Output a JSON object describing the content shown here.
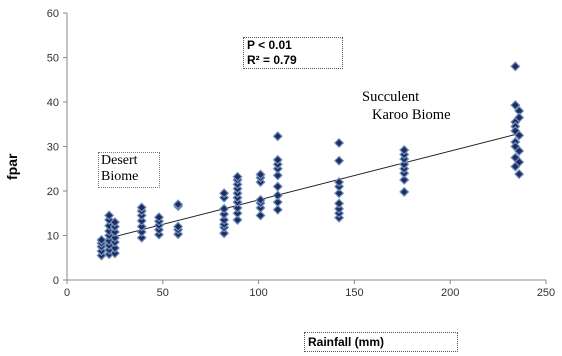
{
  "chart_data": {
    "type": "scatter",
    "xlabel": "Rainfall  (mm)",
    "ylabel": "fpar",
    "xlim": [
      0,
      250
    ],
    "ylim": [
      0,
      60
    ],
    "xticks": [
      0,
      50,
      100,
      150,
      200,
      250
    ],
    "yticks": [
      0,
      10,
      20,
      30,
      40,
      50,
      60
    ],
    "grid": false,
    "marker_color": "#1f2d5c",
    "marker_edge_color": "#6f8fbf",
    "stats": {
      "p": "P < 0.01",
      "r2": "R² = 0.79"
    },
    "annotations": {
      "desert": [
        "Desert",
        "Biome"
      ],
      "karoo": [
        "Succulent",
        "Karoo Biome"
      ]
    },
    "trendline": {
      "x": [
        20,
        235
      ],
      "y": [
        9.2,
        32.8
      ]
    },
    "series": [
      {
        "points": [
          [
            18,
            5.5
          ],
          [
            18,
            6.5
          ],
          [
            18,
            7.5
          ],
          [
            18,
            8.3
          ],
          [
            18,
            9.0
          ],
          [
            22,
            5.8
          ],
          [
            22,
            6.8
          ],
          [
            22,
            7.8
          ],
          [
            22,
            8.8
          ],
          [
            22,
            10.0
          ],
          [
            22,
            11.0
          ],
          [
            22,
            12.2
          ],
          [
            22,
            13.5
          ],
          [
            22,
            14.5
          ],
          [
            25,
            6.0
          ],
          [
            25,
            7.2
          ],
          [
            25,
            8.5
          ],
          [
            25,
            9.5
          ],
          [
            25,
            10.8
          ],
          [
            25,
            12.0
          ],
          [
            25,
            13.0
          ],
          [
            39,
            9.5
          ],
          [
            39,
            10.8
          ],
          [
            39,
            12.0
          ],
          [
            39,
            13.3
          ],
          [
            39,
            14.5
          ],
          [
            39,
            15.5
          ],
          [
            39,
            16.3
          ],
          [
            48,
            10.2
          ],
          [
            48,
            11.3
          ],
          [
            48,
            12.3
          ],
          [
            48,
            13.2
          ],
          [
            48,
            14.1
          ],
          [
            58,
            10.3
          ],
          [
            58,
            11.3
          ],
          [
            58,
            12.0
          ],
          [
            58,
            16.6
          ],
          [
            58,
            17.0
          ],
          [
            82,
            10.5
          ],
          [
            82,
            11.8
          ],
          [
            82,
            12.5
          ],
          [
            82,
            13.5
          ],
          [
            82,
            14.8
          ],
          [
            82,
            16.0
          ],
          [
            82,
            18.5
          ],
          [
            82,
            19.5
          ],
          [
            89,
            13.5
          ],
          [
            89,
            15.0
          ],
          [
            89,
            16.2
          ],
          [
            89,
            17.5
          ],
          [
            89,
            18.5
          ],
          [
            89,
            19.5
          ],
          [
            89,
            20.5
          ],
          [
            89,
            21.5
          ],
          [
            89,
            22.5
          ],
          [
            89,
            23.2
          ],
          [
            101,
            14.5
          ],
          [
            101,
            16.2
          ],
          [
            101,
            17.3
          ],
          [
            101,
            18.0
          ],
          [
            101,
            22.0
          ],
          [
            101,
            23.0
          ],
          [
            101,
            23.7
          ],
          [
            110,
            15.8
          ],
          [
            110,
            17.5
          ],
          [
            110,
            19.0
          ],
          [
            110,
            21.0
          ],
          [
            110,
            23.5
          ],
          [
            110,
            25.0
          ],
          [
            110,
            26.0
          ],
          [
            110,
            27.0
          ],
          [
            110,
            32.3
          ],
          [
            142,
            14.0
          ],
          [
            142,
            15.0
          ],
          [
            142,
            16.0
          ],
          [
            142,
            17.2
          ],
          [
            142,
            19.5
          ],
          [
            142,
            21.0
          ],
          [
            142,
            22.0
          ],
          [
            142,
            26.8
          ],
          [
            142,
            30.8
          ],
          [
            176,
            19.8
          ],
          [
            176,
            22.5
          ],
          [
            176,
            24.0
          ],
          [
            176,
            25.0
          ],
          [
            176,
            26.0
          ],
          [
            176,
            27.2
          ],
          [
            176,
            28.2
          ],
          [
            176,
            29.2
          ],
          [
            234,
            48.0
          ],
          [
            234,
            39.3
          ],
          [
            234,
            35.5
          ],
          [
            234,
            34.5
          ],
          [
            234,
            33.5
          ],
          [
            234,
            31.0
          ],
          [
            234,
            30.0
          ],
          [
            234,
            27.5
          ],
          [
            234,
            25.5
          ],
          [
            236,
            38.0
          ],
          [
            236,
            36.5
          ],
          [
            236,
            32.5
          ],
          [
            236,
            29.0
          ],
          [
            236,
            26.5
          ],
          [
            236,
            23.8
          ]
        ]
      }
    ]
  }
}
